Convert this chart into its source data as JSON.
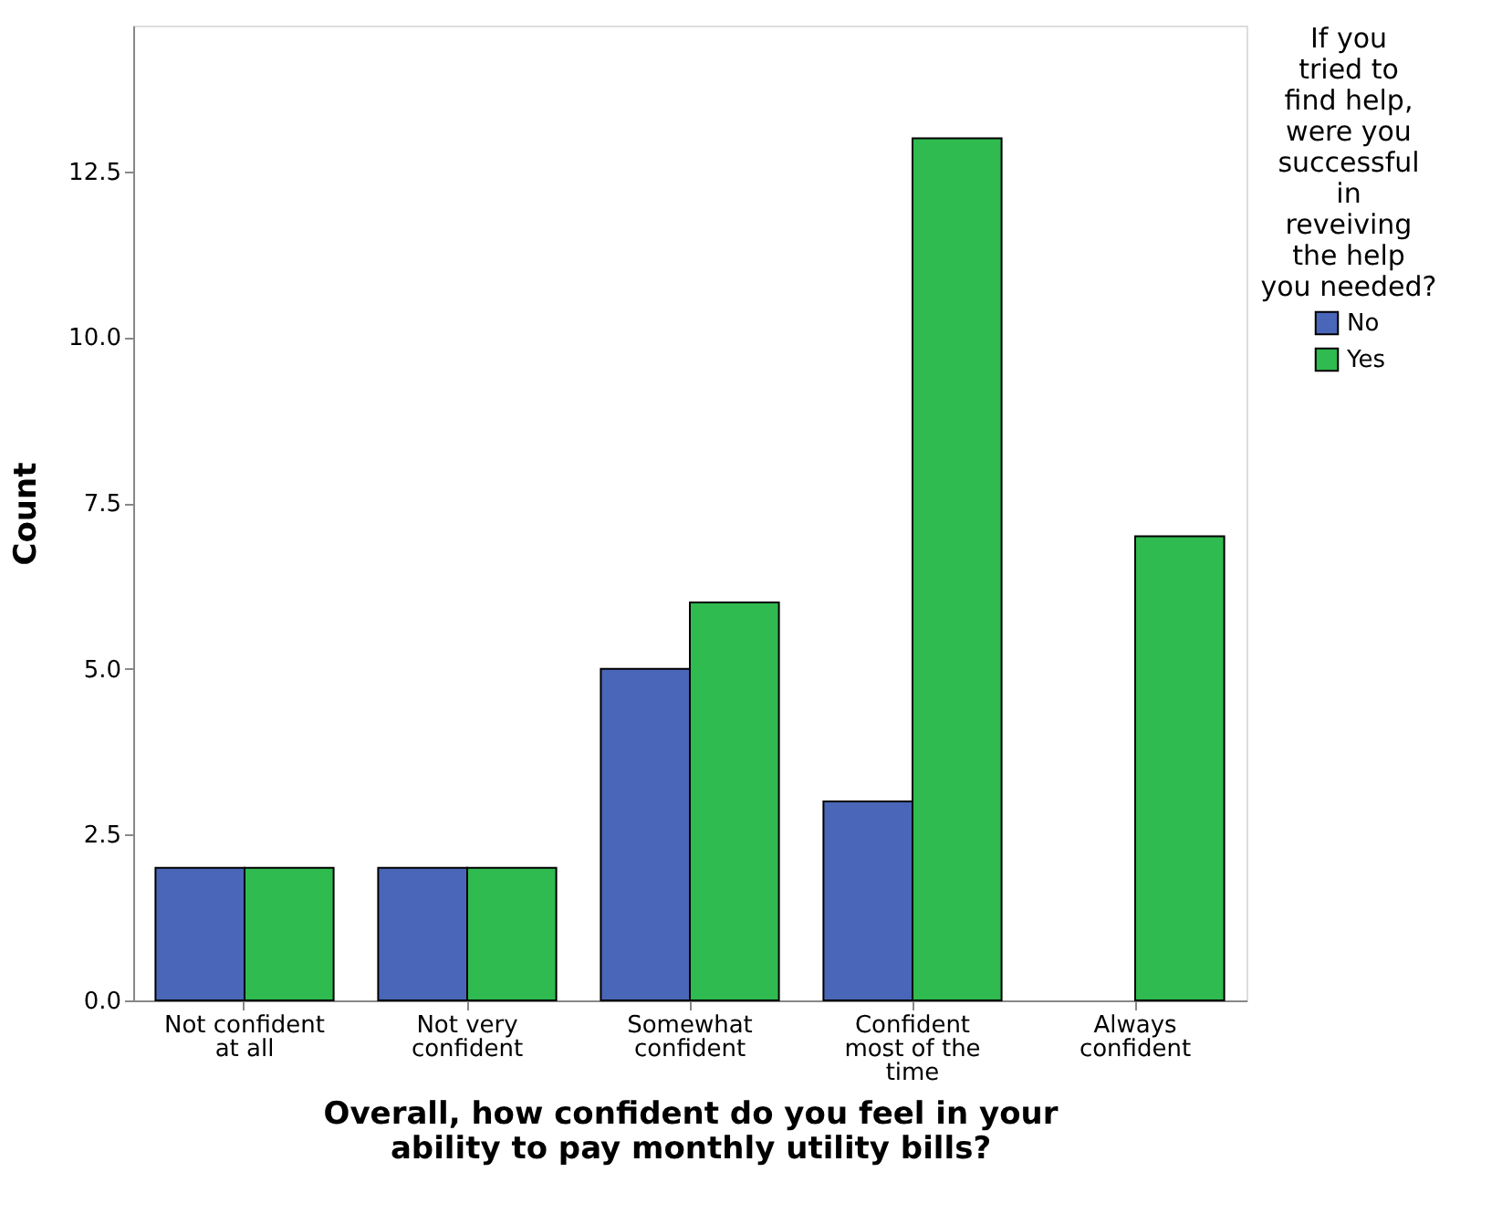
{
  "chart_data": {
    "type": "bar",
    "xlabel": "Overall, how confident do you feel in your ability to pay monthly utility bills?",
    "ylabel": "Count",
    "legend_title": "If you tried to find help, were you successful in reveiving the help you needed?",
    "categories": [
      "Not confident at all",
      "Not very confident",
      "Somewhat confident",
      "Confident most of the time",
      "Always confident"
    ],
    "series": [
      {
        "name": "No",
        "color": "#4a66b8",
        "values": [
          2,
          2,
          5,
          3,
          null
        ]
      },
      {
        "name": "Yes",
        "color": "#2fbb4f",
        "values": [
          2,
          2,
          6,
          13,
          7
        ]
      }
    ],
    "ylim": [
      0,
      14.7
    ],
    "yticks": [
      {
        "value": 0,
        "label": "0.0"
      },
      {
        "value": 2.5,
        "label": "2.5"
      },
      {
        "value": 5,
        "label": "5.0"
      },
      {
        "value": 7.5,
        "label": "7.5"
      },
      {
        "value": 10,
        "label": "10.0"
      },
      {
        "value": 12.5,
        "label": "12.5"
      }
    ],
    "grid": false,
    "legend": "top right"
  }
}
